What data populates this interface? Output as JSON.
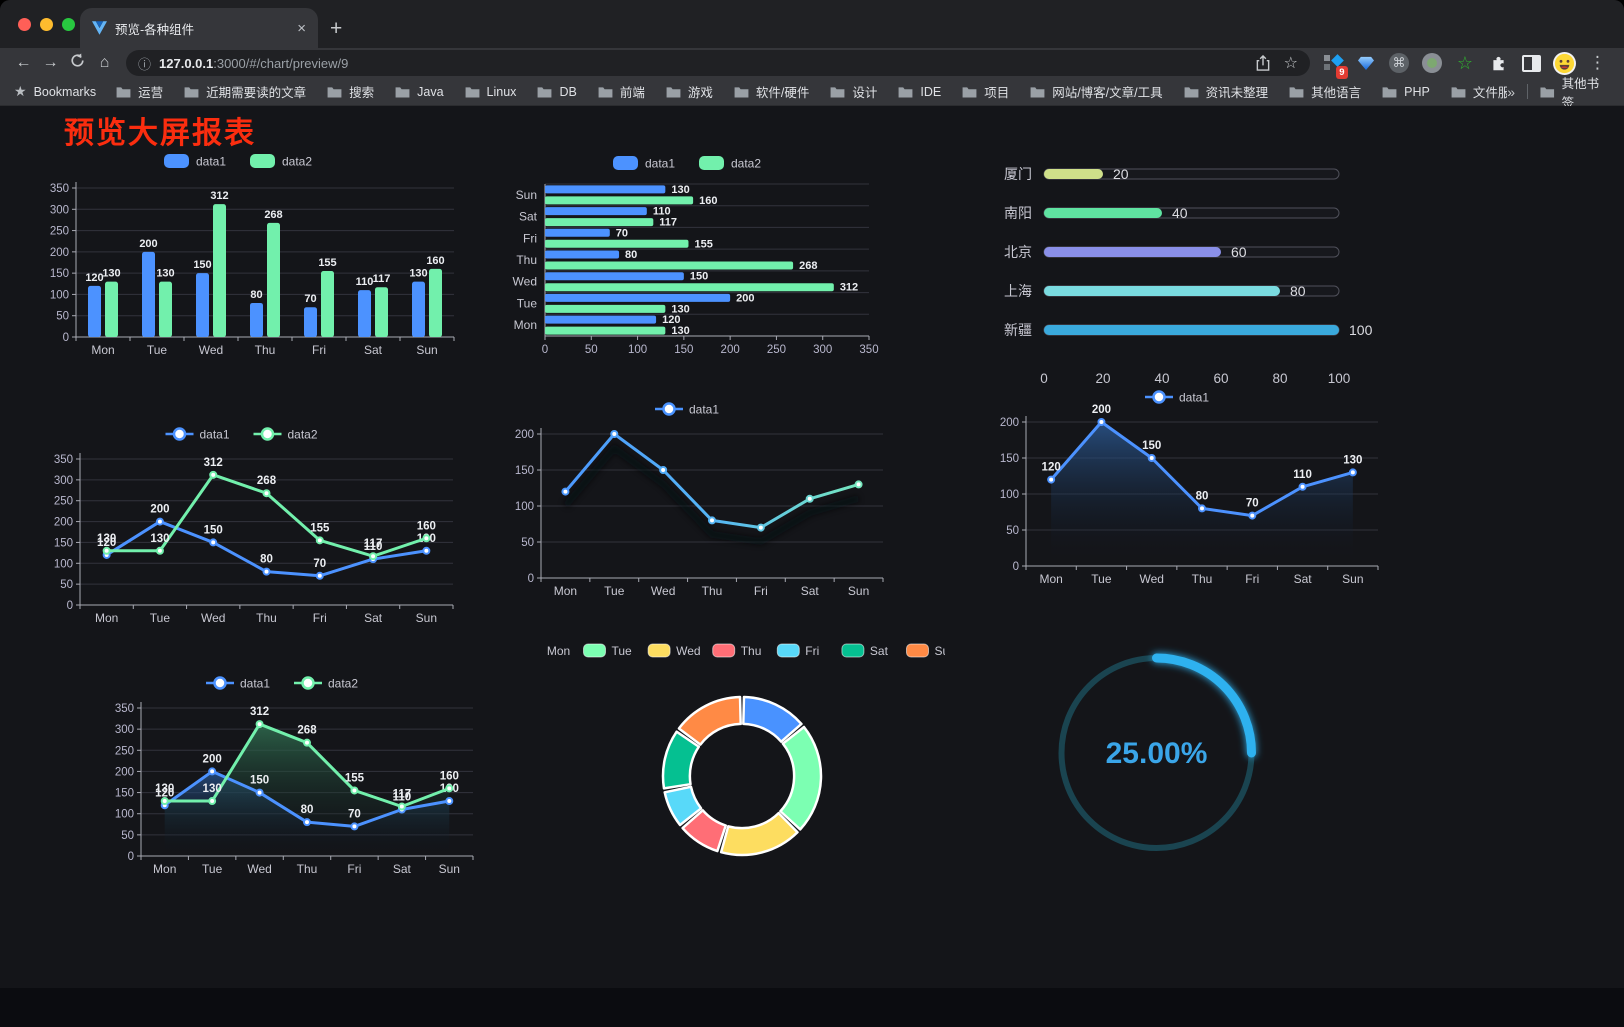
{
  "browser": {
    "tab_title": "预览-各种组件",
    "close_tab_glyph": "×",
    "new_tab_glyph": "+",
    "back_glyph": "←",
    "forward_glyph": "→",
    "home_glyph": "⌂",
    "info_glyph": "ⓘ",
    "star_glyph": "☆",
    "command_glyph": "⌘",
    "green_star_glyph": "☆",
    "menu_glyph": "⋮",
    "url_host": "127.0.0.1",
    "url_rest": ":3000/#/chart/preview/9",
    "extension_badge": "9",
    "bookmarks_label": "Bookmarks",
    "bookmark_folders": [
      "运营",
      "近期需要读的文章",
      "搜索",
      "Java",
      "Linux",
      "DB",
      "前端",
      "游戏",
      "软件/硬件",
      "设计",
      "IDE",
      "项目",
      "网站/博客/文章/工具",
      "资讯未整理",
      "其他语言",
      "PHP",
      "文件服务器"
    ],
    "bookmarks_overflow": "»",
    "other_bookmarks": "其他书签"
  },
  "page": {
    "title": "预览大屏报表",
    "title_color": "#fb2d0f",
    "background": "#141519"
  },
  "colors": {
    "traffic_close": "#ff5f57",
    "traffic_min": "#febc2e",
    "traffic_max": "#28c840",
    "axis_text": "#b9b8ce",
    "grid_line": "#32333c",
    "axis_line": "#a9aab4",
    "value_label": "#eceef2"
  },
  "chart_data": [
    {
      "id": "bar-grouped",
      "type": "bar",
      "categories": [
        "Mon",
        "Tue",
        "Wed",
        "Thu",
        "Fri",
        "Sat",
        "Sun"
      ],
      "series": [
        {
          "name": "data1",
          "color": "#4C92FF",
          "values": [
            120,
            200,
            150,
            80,
            70,
            110,
            130
          ]
        },
        {
          "name": "data2",
          "color": "#72F0AC",
          "values": [
            130,
            130,
            312,
            268,
            155,
            117,
            160
          ]
        }
      ],
      "ylim": [
        0,
        350
      ],
      "ystep": 50,
      "legend_position": "top",
      "grid": true,
      "show_labels": true
    },
    {
      "id": "bar-horizontal",
      "type": "bar-horizontal",
      "categories": [
        "Mon",
        "Tue",
        "Wed",
        "Thu",
        "Fri",
        "Sat",
        "Sun"
      ],
      "series": [
        {
          "name": "data1",
          "color": "#4C92FF",
          "values": [
            120,
            200,
            150,
            80,
            70,
            110,
            130
          ]
        },
        {
          "name": "data2",
          "color": "#72F0AC",
          "values": [
            130,
            130,
            312,
            268,
            155,
            117,
            160
          ]
        }
      ],
      "xlim": [
        0,
        350
      ],
      "xstep": 50,
      "legend_position": "top",
      "show_labels": true
    },
    {
      "id": "progress-bars",
      "type": "progress-bar-list",
      "max": 100,
      "xticks": [
        0,
        20,
        40,
        60,
        80,
        100
      ],
      "items": [
        {
          "label": "厦门",
          "value": 20,
          "color": "#cfe08a"
        },
        {
          "label": "南阳",
          "value": 40,
          "color": "#5fe3a1"
        },
        {
          "label": "北京",
          "value": 60,
          "color": "#8a8fe8"
        },
        {
          "label": "上海",
          "value": 80,
          "color": "#7adbe0"
        },
        {
          "label": "新疆",
          "value": 100,
          "color": "#3aa9dc"
        }
      ]
    },
    {
      "id": "line-dual",
      "type": "line",
      "categories": [
        "Mon",
        "Tue",
        "Wed",
        "Thu",
        "Fri",
        "Sat",
        "Sun"
      ],
      "series": [
        {
          "name": "data1",
          "color": "#4C92FF",
          "values": [
            120,
            200,
            150,
            80,
            70,
            110,
            130
          ]
        },
        {
          "name": "data2",
          "color": "#72F0AC",
          "values": [
            130,
            130,
            312,
            268,
            155,
            117,
            160
          ]
        }
      ],
      "ylim": [
        0,
        350
      ],
      "ystep": 50,
      "show_labels": true,
      "legend_position": "top"
    },
    {
      "id": "line-gradient",
      "type": "line",
      "categories": [
        "Mon",
        "Tue",
        "Wed",
        "Thu",
        "Fri",
        "Sat",
        "Sun"
      ],
      "series": [
        {
          "name": "data1",
          "color": "#4C92FF",
          "gradient": [
            "#4a93ff",
            "#55b5f5",
            "#7cf0b6"
          ],
          "values": [
            120,
            200,
            150,
            80,
            70,
            110,
            130
          ]
        }
      ],
      "ylim": [
        0,
        200
      ],
      "ystep": 50,
      "show_labels": false,
      "shadow": true,
      "legend_position": "top"
    },
    {
      "id": "area-single",
      "type": "line",
      "categories": [
        "Mon",
        "Tue",
        "Wed",
        "Thu",
        "Fri",
        "Sat",
        "Sun"
      ],
      "series": [
        {
          "name": "data1",
          "color": "#4C92FF",
          "area": "rgba(46,96,160,0.75)",
          "values": [
            120,
            200,
            150,
            80,
            70,
            110,
            130
          ]
        }
      ],
      "ylim": [
        0,
        200
      ],
      "ystep": 50,
      "show_labels": true,
      "legend_position": "top"
    },
    {
      "id": "area-dual",
      "type": "line",
      "categories": [
        "Mon",
        "Tue",
        "Wed",
        "Thu",
        "Fri",
        "Sat",
        "Sun"
      ],
      "series": [
        {
          "name": "data1",
          "color": "#4C92FF",
          "area": "rgba(44,94,158,0.7)",
          "values": [
            120,
            200,
            150,
            80,
            70,
            110,
            130
          ]
        },
        {
          "name": "data2",
          "color": "#72F0AC",
          "area": "rgba(50,116,84,0.8)",
          "values": [
            130,
            130,
            312,
            268,
            155,
            117,
            160
          ]
        }
      ],
      "ylim": [
        0,
        350
      ],
      "ystep": 50,
      "show_labels": true,
      "legend_position": "top"
    },
    {
      "id": "donut",
      "type": "pie",
      "inner_radius_ratio": 0.66,
      "categories": [
        "Mon",
        "Tue",
        "Wed",
        "Thu",
        "Fri",
        "Sat",
        "Sun"
      ],
      "values": [
        120,
        200,
        150,
        80,
        70,
        110,
        130
      ],
      "colors": [
        "#4992ff",
        "#7cffb2",
        "#fddd60",
        "#ff6e76",
        "#58d9f9",
        "#05c091",
        "#ff8a45"
      ],
      "legend_position": "top"
    },
    {
      "id": "gauge",
      "type": "gauge",
      "value": 25,
      "label": "25.00%",
      "color": "#2fb1ef",
      "track_color": "#1a4450",
      "label_color": "#3aa5e8"
    }
  ]
}
